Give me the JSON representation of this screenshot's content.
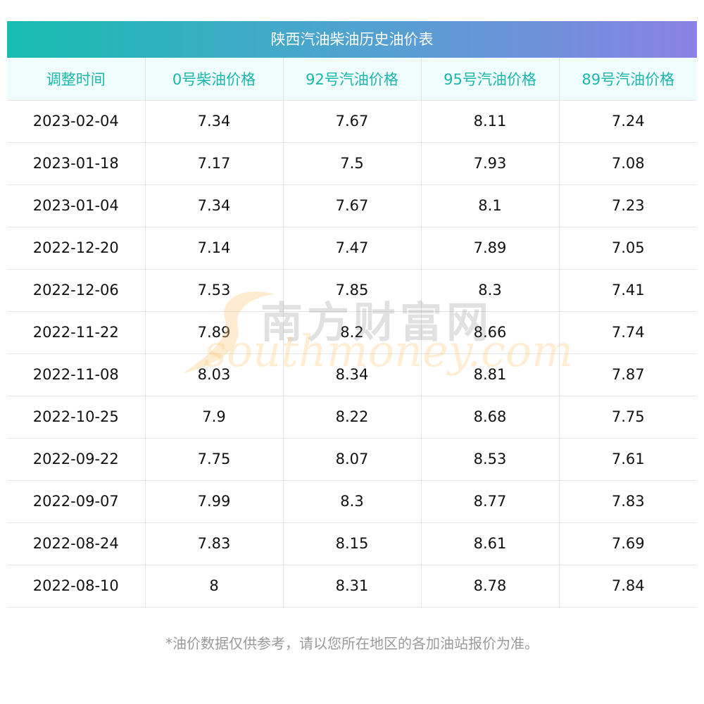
{
  "title": "陕西汽油柴油历史油价表",
  "headers": [
    "调整时间",
    "0号柴油价格",
    "92号汽油价格",
    "95号汽油价格",
    "89号汽油价格"
  ],
  "rows": [
    [
      "2023-02-04",
      "7.34",
      "7.67",
      "8.11",
      "7.24"
    ],
    [
      "2023-01-18",
      "7.17",
      "7.5",
      "7.93",
      "7.08"
    ],
    [
      "2023-01-04",
      "7.34",
      "7.67",
      "8.1",
      "7.23"
    ],
    [
      "2022-12-20",
      "7.14",
      "7.47",
      "7.89",
      "7.05"
    ],
    [
      "2022-12-06",
      "7.53",
      "7.85",
      "8.3",
      "7.41"
    ],
    [
      "2022-11-22",
      "7.89",
      "8.2",
      "8.66",
      "7.74"
    ],
    [
      "2022-11-08",
      "8.03",
      "8.34",
      "8.81",
      "7.87"
    ],
    [
      "2022-10-25",
      "7.9",
      "8.22",
      "8.68",
      "7.75"
    ],
    [
      "2022-09-22",
      "7.75",
      "8.07",
      "8.53",
      "7.61"
    ],
    [
      "2022-09-07",
      "7.99",
      "8.3",
      "8.77",
      "7.83"
    ],
    [
      "2022-08-24",
      "7.83",
      "8.15",
      "8.61",
      "7.69"
    ],
    [
      "2022-08-10",
      "8",
      "8.31",
      "8.78",
      "7.84"
    ]
  ],
  "watermark": {
    "cn": "南方财富网",
    "en": "southmoney.com"
  },
  "footnote": "*油价数据仅供参考，请以您所在地区的各加油站报价为准。",
  "colors": {
    "header_text": "#1cb7ac",
    "header_bg": "#effdfc",
    "gradient_start": "#17bdb0",
    "gradient_end": "#8a82e4",
    "footnote": "#9a9a9a"
  }
}
